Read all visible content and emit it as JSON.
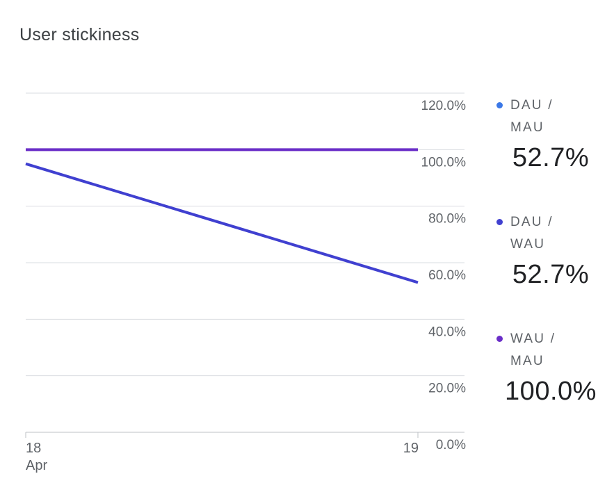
{
  "card": {
    "title": "User stickiness"
  },
  "chart_data": {
    "type": "line",
    "title": "User stickiness",
    "x": [
      "18 Apr",
      "19"
    ],
    "x_tick_labels": [
      {
        "line1": "18",
        "line2": "Apr"
      },
      {
        "line1": "19",
        "line2": ""
      }
    ],
    "y_ticks": [
      "0.0%",
      "20.0%",
      "40.0%",
      "60.0%",
      "80.0%",
      "100.0%",
      "120.0%"
    ],
    "ylim": [
      0,
      120
    ],
    "grid": true,
    "legend_position": "right",
    "series": [
      {
        "name": "DAU / MAU",
        "values": [
          95,
          53
        ],
        "color": "#4040d0"
      },
      {
        "name": "WAU / MAU",
        "values": [
          100,
          100
        ],
        "color": "#6a2ec8"
      }
    ]
  },
  "legend": {
    "items": [
      {
        "label": "DAU / MAU",
        "value": "52.7%",
        "color": "#3b78e7"
      },
      {
        "label": "DAU / WAU",
        "value": "52.7%",
        "color": "#4040d0"
      },
      {
        "label": "WAU / MAU",
        "value": "100.0%",
        "color": "#6a2ec8"
      }
    ]
  }
}
